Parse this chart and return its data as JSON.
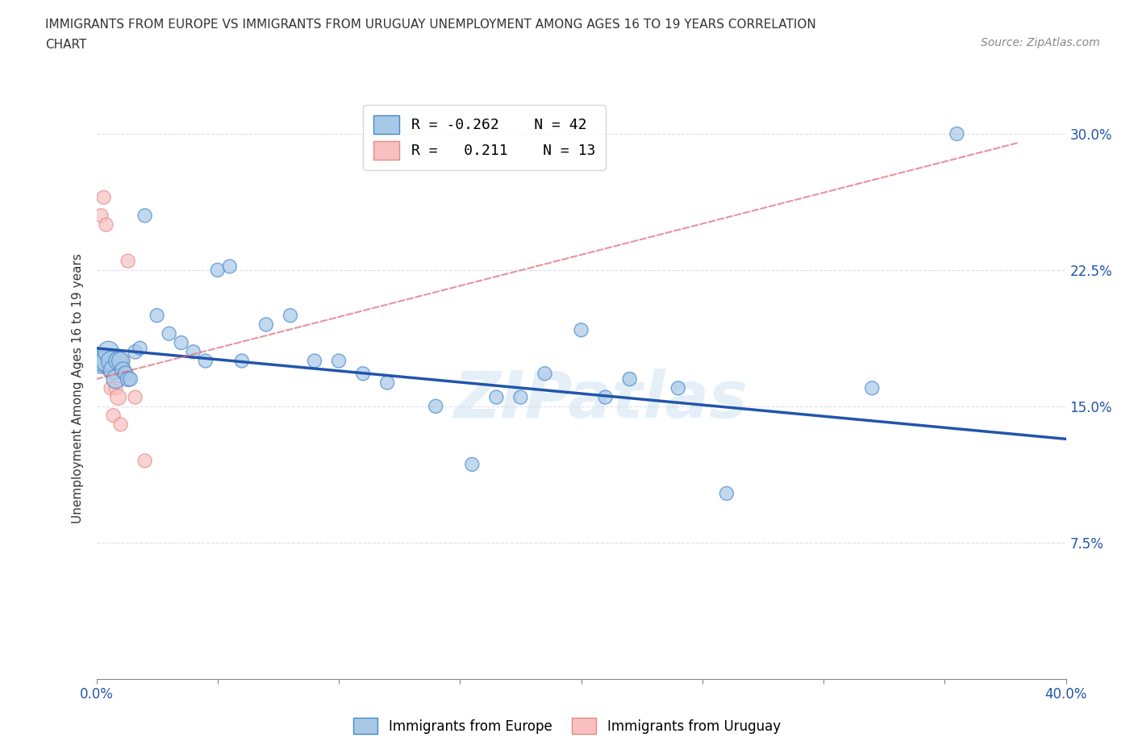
{
  "title": "IMMIGRANTS FROM EUROPE VS IMMIGRANTS FROM URUGUAY UNEMPLOYMENT AMONG AGES 16 TO 19 YEARS CORRELATION\nCHART",
  "source_text": "Source: ZipAtlas.com",
  "ylabel": "Unemployment Among Ages 16 to 19 years",
  "xlim": [
    0.0,
    0.4
  ],
  "ylim": [
    0.0,
    0.32
  ],
  "ytick_positions": [
    0.075,
    0.15,
    0.225,
    0.3
  ],
  "ytick_right_labels": [
    "7.5%",
    "15.0%",
    "22.5%",
    "30.0%"
  ],
  "europe_R": -0.262,
  "europe_N": 42,
  "uruguay_R": 0.211,
  "uruguay_N": 13,
  "europe_color": "#a8c8e8",
  "europe_edge_color": "#4488cc",
  "europe_line_color": "#2255aa",
  "uruguay_color": "#f8c0c0",
  "uruguay_edge_color": "#e88888",
  "uruguay_line_color": "#dd6677",
  "watermark": "ZIPatlas",
  "europe_line_x0": 0.0,
  "europe_line_y0": 0.182,
  "europe_line_x1": 0.4,
  "europe_line_y1": 0.132,
  "uruguay_line_x0": 0.0,
  "uruguay_line_y0": 0.165,
  "uruguay_line_x1": 0.38,
  "uruguay_line_y1": 0.295,
  "europe_scatter_x": [
    0.002,
    0.003,
    0.004,
    0.005,
    0.006,
    0.007,
    0.008,
    0.009,
    0.01,
    0.011,
    0.012,
    0.013,
    0.014,
    0.016,
    0.018,
    0.02,
    0.025,
    0.03,
    0.035,
    0.04,
    0.045,
    0.05,
    0.055,
    0.06,
    0.07,
    0.08,
    0.09,
    0.1,
    0.11,
    0.12,
    0.14,
    0.155,
    0.165,
    0.175,
    0.185,
    0.2,
    0.21,
    0.22,
    0.24,
    0.26,
    0.32,
    0.355
  ],
  "europe_scatter_y": [
    0.175,
    0.175,
    0.175,
    0.18,
    0.175,
    0.17,
    0.165,
    0.175,
    0.175,
    0.17,
    0.168,
    0.165,
    0.165,
    0.18,
    0.182,
    0.255,
    0.2,
    0.19,
    0.185,
    0.18,
    0.175,
    0.225,
    0.227,
    0.175,
    0.195,
    0.2,
    0.175,
    0.175,
    0.168,
    0.163,
    0.15,
    0.118,
    0.155,
    0.155,
    0.168,
    0.192,
    0.155,
    0.165,
    0.16,
    0.102,
    0.16,
    0.3
  ],
  "europe_scatter_size": [
    500,
    400,
    350,
    350,
    300,
    300,
    280,
    280,
    250,
    200,
    180,
    180,
    160,
    160,
    150,
    150,
    150,
    150,
    150,
    150,
    150,
    150,
    150,
    150,
    150,
    150,
    150,
    150,
    150,
    150,
    150,
    150,
    150,
    150,
    150,
    150,
    150,
    150,
    150,
    150,
    150,
    150
  ],
  "uruguay_scatter_x": [
    0.002,
    0.003,
    0.004,
    0.005,
    0.006,
    0.007,
    0.008,
    0.009,
    0.01,
    0.011,
    0.013,
    0.016,
    0.02
  ],
  "uruguay_scatter_y": [
    0.255,
    0.265,
    0.25,
    0.17,
    0.16,
    0.145,
    0.16,
    0.155,
    0.14,
    0.175,
    0.23,
    0.155,
    0.12
  ],
  "uruguay_scatter_size": [
    150,
    150,
    150,
    150,
    150,
    150,
    150,
    200,
    150,
    150,
    150,
    150,
    150
  ]
}
